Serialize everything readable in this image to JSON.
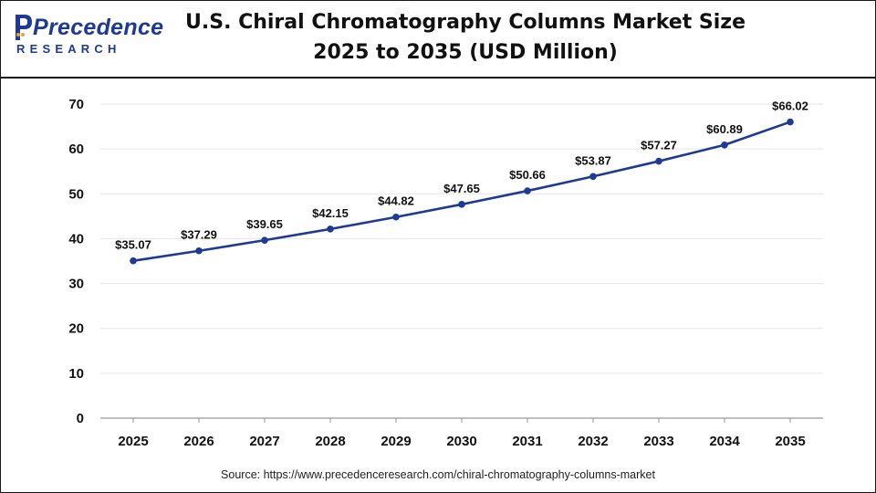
{
  "brand": {
    "name": "Precedence",
    "sub": "RESEARCH",
    "color": "#1f3a93"
  },
  "title": {
    "line1": "U.S. Chiral Chromatography Columns Market Size",
    "line2": "2025 to 2035 (USD Million)"
  },
  "source": "Source: https://www.precedenceresearch.com/chiral-chromatography-columns-market",
  "chart_data": {
    "type": "line",
    "title": "U.S. Chiral Chromatography Columns Market Size 2025 to 2035 (USD Million)",
    "xlabel": "",
    "ylabel": "",
    "x": [
      "2025",
      "2026",
      "2027",
      "2028",
      "2029",
      "2030",
      "2031",
      "2032",
      "2033",
      "2034",
      "2035"
    ],
    "values": [
      35.07,
      37.29,
      39.65,
      42.15,
      44.82,
      47.65,
      50.66,
      53.87,
      57.27,
      60.89,
      66.02
    ],
    "labels": [
      "$35.07",
      "$37.29",
      "$39.65",
      "$42.15",
      "$44.82",
      "$47.65",
      "$50.66",
      "$53.87",
      "$57.27",
      "$60.89",
      "$66.02"
    ],
    "ylim": [
      0,
      70
    ],
    "yticks": [
      "0",
      "10",
      "20",
      "30",
      "40",
      "50",
      "60",
      "70"
    ],
    "grid": true,
    "legend": "none",
    "line_color": "#1f3a93"
  }
}
